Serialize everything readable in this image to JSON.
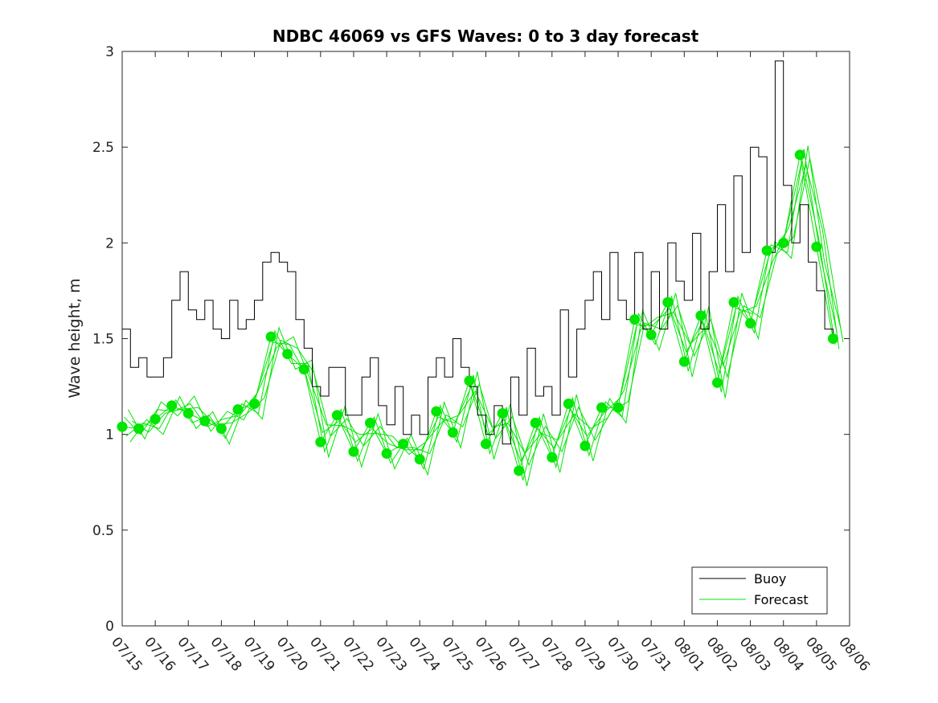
{
  "chart_data": {
    "type": "line",
    "title": "NDBC 46069 vs GFS Waves: 0 to 3 day forecast",
    "xlabel": "",
    "ylabel": "Wave height, m",
    "ylim": [
      0,
      3
    ],
    "yticks": [
      "0",
      "0.5",
      "1",
      "1.5",
      "2",
      "2.5",
      "3"
    ],
    "x_tick_labels": [
      "07/15",
      "07/16",
      "07/17",
      "07/18",
      "07/19",
      "07/20",
      "07/21",
      "07/22",
      "07/23",
      "07/24",
      "07/25",
      "07/26",
      "07/27",
      "07/28",
      "07/29",
      "07/30",
      "07/31",
      "08/01",
      "08/02",
      "08/03",
      "08/04",
      "08/05",
      "08/06"
    ],
    "x_unit": "day offset from 07/15",
    "legend": {
      "position": "bottom-right",
      "entries": [
        "Buoy",
        "Forecast"
      ]
    },
    "colors": {
      "buoy": "#000000",
      "forecast": "#00e600"
    },
    "series": [
      {
        "name": "Buoy",
        "x": [
          0,
          0.25,
          0.5,
          0.75,
          1,
          1.25,
          1.5,
          1.75,
          2,
          2.25,
          2.5,
          2.75,
          3,
          3.25,
          3.5,
          3.75,
          4,
          4.25,
          4.5,
          4.75,
          5,
          5.25,
          5.5,
          5.75,
          6,
          6.25,
          6.5,
          6.75,
          7,
          7.25,
          7.5,
          7.75,
          8,
          8.25,
          8.5,
          8.75,
          9,
          9.25,
          9.5,
          9.75,
          10,
          10.25,
          10.5,
          10.75,
          11,
          11.25,
          11.5,
          11.75,
          12,
          12.25,
          12.5,
          12.75,
          13,
          13.25,
          13.5,
          13.75,
          14,
          14.25,
          14.5,
          14.75,
          15,
          15.25,
          15.5,
          15.75,
          16,
          16.25,
          16.5,
          16.75,
          17,
          17.25,
          17.5,
          17.75,
          18,
          18.25,
          18.5,
          18.75,
          19,
          19.25,
          19.5,
          19.75,
          20,
          20.25,
          20.5,
          20.75,
          21,
          21.25,
          21.5
        ],
        "values": [
          1.55,
          1.35,
          1.4,
          1.3,
          1.3,
          1.4,
          1.7,
          1.85,
          1.65,
          1.6,
          1.7,
          1.55,
          1.5,
          1.7,
          1.55,
          1.6,
          1.7,
          1.9,
          1.95,
          1.9,
          1.85,
          1.6,
          1.45,
          1.25,
          1.2,
          1.35,
          1.35,
          1.1,
          1.1,
          1.3,
          1.4,
          1.15,
          1.05,
          1.25,
          1.0,
          1.1,
          1.0,
          1.3,
          1.4,
          1.3,
          1.5,
          1.35,
          1.25,
          1.1,
          1.0,
          1.15,
          0.95,
          1.3,
          1.1,
          1.45,
          1.2,
          1.25,
          1.1,
          1.65,
          1.3,
          1.55,
          1.7,
          1.85,
          1.6,
          1.95,
          1.7,
          1.6,
          1.95,
          1.55,
          1.85,
          1.55,
          2.0,
          1.8,
          1.7,
          2.05,
          1.55,
          1.85,
          2.2,
          1.85,
          2.35,
          1.95,
          2.5,
          2.45,
          1.95,
          2.95,
          2.3,
          2.0,
          2.2,
          1.9,
          1.75,
          1.55,
          1.5
        ]
      },
      {
        "name": "Forecast",
        "x": [
          0,
          0.5,
          1,
          1.5,
          2,
          2.5,
          3,
          3.5,
          4,
          4.5,
          5,
          5.5,
          6,
          6.5,
          7,
          7.5,
          8,
          8.5,
          9,
          9.5,
          10,
          10.5,
          11,
          11.5,
          12,
          12.5,
          13,
          13.5,
          14,
          14.5,
          15,
          15.5,
          16,
          16.5,
          17,
          17.5,
          18,
          18.5,
          19,
          19.5,
          20,
          20.5,
          21,
          21.5
        ],
        "values": [
          1.04,
          1.03,
          1.08,
          1.15,
          1.11,
          1.07,
          1.03,
          1.13,
          1.16,
          1.51,
          1.42,
          1.34,
          0.96,
          1.1,
          0.91,
          1.06,
          0.9,
          0.95,
          0.87,
          1.12,
          1.01,
          1.28,
          0.95,
          1.11,
          0.81,
          1.06,
          0.88,
          1.16,
          0.94,
          1.14,
          1.14,
          1.6,
          1.52,
          1.69,
          1.38,
          1.62,
          1.27,
          1.69,
          1.58,
          1.96,
          2.0,
          2.46,
          1.98,
          1.5
        ]
      }
    ]
  }
}
